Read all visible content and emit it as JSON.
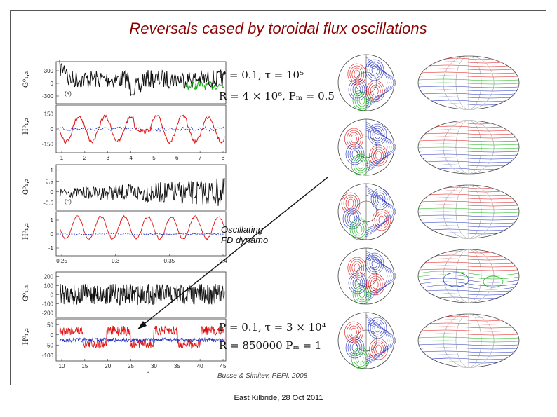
{
  "slide": {
    "title": "Reversals cased by toroidal flux oscillations",
    "annotation": "Oscillating FD dynamo",
    "citation": "Busse & Simitev, PEPI, 2008",
    "footer": "East Kilbride, 28 Oct 2011"
  },
  "equations": {
    "top_line1": "P = 0.1,  τ = 10⁵",
    "top_line2": "R = 4 × 10⁶,  Pₘ = 0.5",
    "bottom_line1": "P = 0.1,  τ = 3 × 10⁴",
    "bottom_line2": "R = 850000   Pₘ = 1"
  },
  "figure": {
    "panel_a": {
      "label": "(a)",
      "top_ylabel": "G⁰₁,₂",
      "top_yticks": [
        "300",
        "0",
        "-300"
      ],
      "bottom_ylabel": "H⁰₁,₂",
      "bottom_yticks": [
        "150",
        "0",
        "-150"
      ],
      "xticks": [
        "1",
        "2",
        "3",
        "4",
        "5",
        "6",
        "7",
        "8"
      ]
    },
    "panel_b": {
      "label": "(b)",
      "top_ylabel": "G⁰₁,₂",
      "top_yticks": [
        "1",
        "0.5",
        "0",
        "-0.5"
      ],
      "bottom_ylabel": "H⁰₁,₂",
      "bottom_yticks": [
        "1",
        "0",
        "-1"
      ],
      "xticks": [
        "0.25",
        "0.3",
        "0.35",
        "0.4"
      ]
    },
    "panel_c": {
      "top_ylabel": "G⁰₁,₂",
      "top_yticks": [
        "200",
        "100",
        "0",
        "-100",
        "-200"
      ],
      "bottom_ylabel": "H⁰₁,₂",
      "bottom_yticks": [
        "50",
        "0",
        "-50",
        "-100"
      ],
      "xticks": [
        "10",
        "15",
        "20",
        "25",
        "30",
        "35",
        "40",
        "45"
      ],
      "xlabel": "t"
    }
  },
  "colors": {
    "title": "#8b0000",
    "series_black": "#111111",
    "series_red": "#e01010",
    "series_blue": "#2030c0",
    "series_green": "#10b010"
  }
}
